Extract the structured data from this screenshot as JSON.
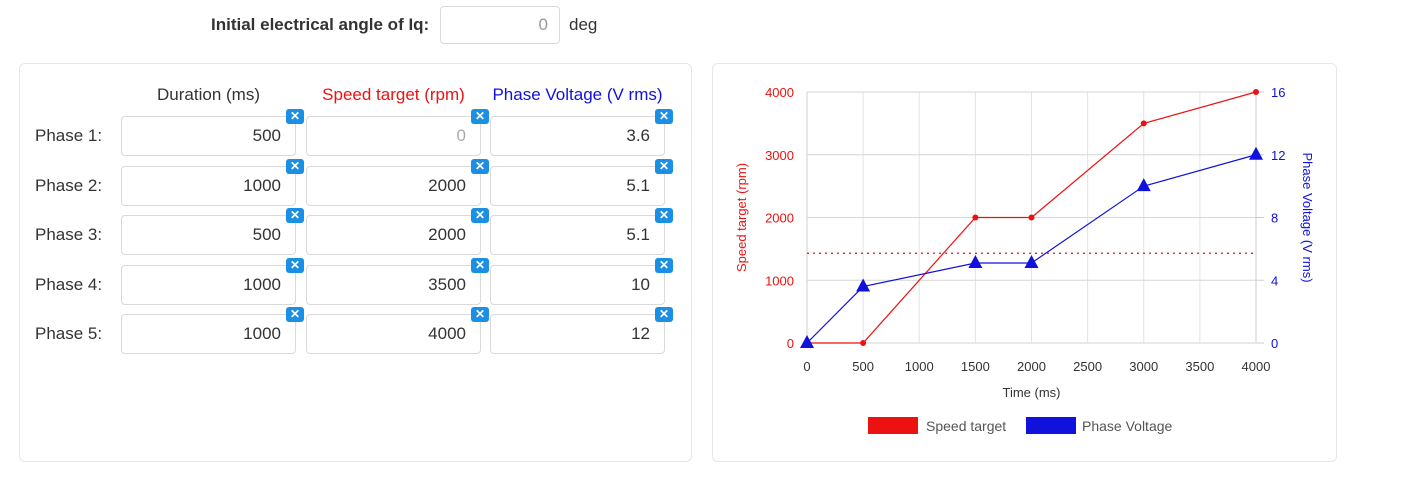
{
  "angle": {
    "label": "Initial electrical angle of Iq:",
    "value": "0",
    "unit": "deg"
  },
  "table": {
    "headers": {
      "duration": "Duration (ms)",
      "speed": "Speed target (rpm)",
      "voltage": "Phase Voltage (V rms)"
    },
    "rows": [
      {
        "label": "Phase 1:",
        "duration": "500",
        "speed": "0",
        "voltage": "3.6"
      },
      {
        "label": "Phase 2:",
        "duration": "1000",
        "speed": "2000",
        "voltage": "5.1"
      },
      {
        "label": "Phase 3:",
        "duration": "500",
        "speed": "2000",
        "voltage": "5.1"
      },
      {
        "label": "Phase 4:",
        "duration": "1000",
        "speed": "3500",
        "voltage": "10"
      },
      {
        "label": "Phase 5:",
        "duration": "1000",
        "speed": "4000",
        "voltage": "12"
      }
    ],
    "clear_glyph": "✕"
  },
  "colors": {
    "speed": "#ee1111",
    "voltage": "#1111dd",
    "clear": "#1a8fe3"
  },
  "chart_data": {
    "type": "line",
    "xlabel": "Time (ms)",
    "ylabel_left": "Speed target (rpm)",
    "ylabel_right": "Phase Voltage (V rms)",
    "xlim": [
      0,
      4000
    ],
    "ylim_left": [
      0,
      4000
    ],
    "ylim_right": [
      0,
      16
    ],
    "xticks": [
      "0",
      "500",
      "1000",
      "1500",
      "2000",
      "2500",
      "3000",
      "3500",
      "4000"
    ],
    "yticks_left": [
      "0",
      "1000",
      "2000",
      "3000",
      "4000"
    ],
    "yticks_right": [
      "0",
      "4",
      "8",
      "12",
      "16"
    ],
    "grid": true,
    "legend_position": "bottom",
    "series": [
      {
        "name": "Speed target",
        "axis": "left",
        "marker": "circle",
        "x": [
          0,
          500,
          1500,
          2000,
          3000,
          4000
        ],
        "y": [
          0,
          0,
          2000,
          2000,
          3500,
          4000
        ]
      },
      {
        "name": "Phase Voltage",
        "axis": "right",
        "marker": "triangle",
        "x": [
          0,
          500,
          1500,
          2000,
          3000,
          4000
        ],
        "y": [
          0,
          3.6,
          5.1,
          5.1,
          10,
          12
        ]
      }
    ],
    "reference_line": {
      "axis": "left",
      "y": 1430,
      "style": "dotted"
    }
  }
}
